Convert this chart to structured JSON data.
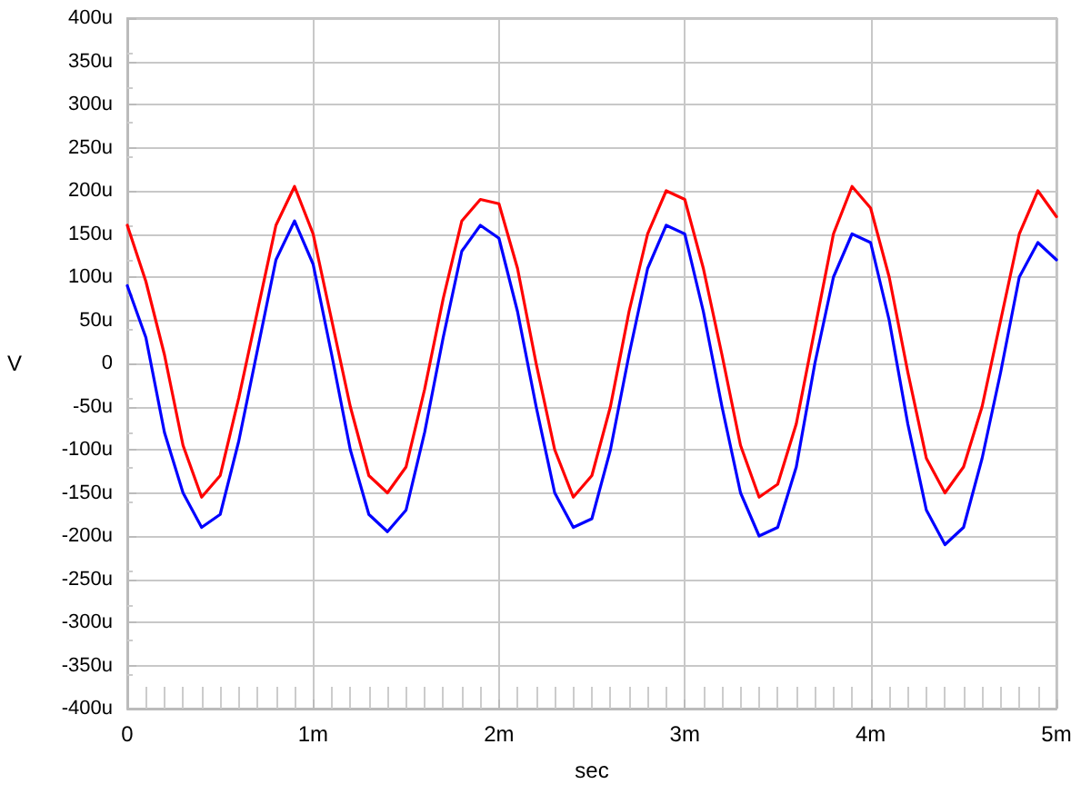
{
  "chart_data": {
    "type": "line",
    "xlabel": "sec",
    "ylabel": "V",
    "x": [
      0,
      0.1,
      0.2,
      0.3,
      0.4,
      0.5,
      0.6,
      0.7,
      0.8,
      0.9,
      1,
      1.1,
      1.2,
      1.3,
      1.4,
      1.5,
      1.6,
      1.7,
      1.8,
      1.9,
      2,
      2.1,
      2.2,
      2.3,
      2.4,
      2.5,
      2.6,
      2.7,
      2.8,
      2.9,
      3,
      3.1,
      3.2,
      3.3,
      3.4,
      3.5,
      3.6,
      3.7,
      3.8,
      3.9,
      4,
      4.1,
      4.2,
      4.3,
      4.4,
      4.5,
      4.6,
      4.7,
      4.8,
      4.9,
      5
    ],
    "series": [
      {
        "color": "#ff0000",
        "values": [
          160,
          95,
          10,
          -95,
          -155,
          -130,
          -40,
          60,
          160,
          205,
          150,
          50,
          -50,
          -130,
          -150,
          -120,
          -30,
          75,
          165,
          190,
          185,
          110,
          0,
          -100,
          -155,
          -130,
          -50,
          60,
          150,
          200,
          190,
          110,
          10,
          -95,
          -155,
          -140,
          -70,
          40,
          150,
          205,
          180,
          100,
          -10,
          -110,
          -150,
          -120,
          -50,
          50,
          150,
          200,
          170
        ]
      },
      {
        "color": "#0000ff",
        "values": [
          90,
          30,
          -80,
          -150,
          -190,
          -175,
          -90,
          15,
          120,
          165,
          115,
          10,
          -100,
          -175,
          -195,
          -170,
          -80,
          30,
          130,
          160,
          145,
          60,
          -50,
          -150,
          -190,
          -180,
          -100,
          10,
          110,
          160,
          150,
          60,
          -50,
          -150,
          -200,
          -190,
          -120,
          0,
          100,
          150,
          140,
          50,
          -70,
          -170,
          -210,
          -190,
          -110,
          -10,
          100,
          140,
          120
        ]
      }
    ],
    "xlim": [
      0,
      5
    ],
    "xticks": [
      0,
      {
        "value": 1,
        "label": "1m"
      },
      {
        "value": 2,
        "label": "2m"
      },
      {
        "value": 3,
        "label": "3m"
      },
      {
        "value": 4,
        "label": "4m"
      },
      {
        "value": 5,
        "label": "5m"
      }
    ],
    "ylim": [
      -400,
      400
    ],
    "yticks": [
      {
        "value": -400,
        "label": "-400u"
      },
      {
        "value": -350,
        "label": "-350u"
      },
      {
        "value": -300,
        "label": "-300u"
      },
      {
        "value": -250,
        "label": "-250u"
      },
      {
        "value": -200,
        "label": "-200u"
      },
      {
        "value": -150,
        "label": "-150u"
      },
      {
        "value": -100,
        "label": "-100u"
      },
      {
        "value": -50,
        "label": "-50u"
      },
      0,
      {
        "value": 50,
        "label": "50u"
      },
      {
        "value": 100,
        "label": "100u"
      },
      {
        "value": 150,
        "label": "150u"
      },
      {
        "value": 200,
        "label": "200u"
      },
      {
        "value": 250,
        "label": "250u"
      },
      {
        "value": 300,
        "label": "300u"
      },
      {
        "value": 350,
        "label": "350u"
      },
      {
        "value": 400,
        "label": "400u"
      }
    ],
    "grid": true,
    "marker": "none",
    "line_style": "solid"
  }
}
